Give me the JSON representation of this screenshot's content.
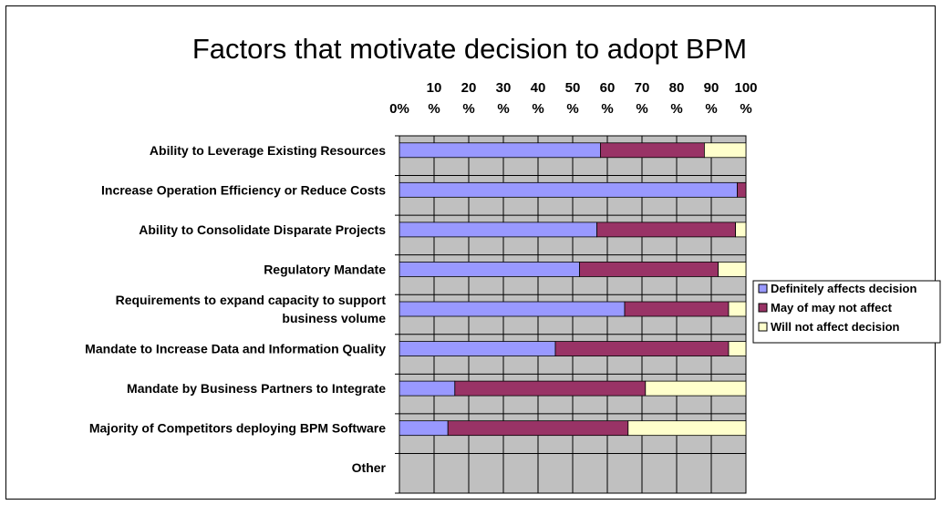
{
  "chart_data": {
    "type": "bar",
    "orientation": "horizontal",
    "stacked": true,
    "percent": true,
    "title": "Factors that motivate decision to adopt BPM",
    "x_ticks": [
      [
        "0%"
      ],
      [
        "10",
        "%"
      ],
      [
        "20",
        "%"
      ],
      [
        "30",
        "%"
      ],
      [
        "40",
        "%"
      ],
      [
        "50",
        "%"
      ],
      [
        "60",
        "%"
      ],
      [
        "70",
        "%"
      ],
      [
        "80",
        "%"
      ],
      [
        "90",
        "%"
      ],
      [
        "100",
        "%"
      ]
    ],
    "xlim": [
      0,
      100
    ],
    "grid": true,
    "legend_position": "right",
    "categories": [
      [
        "Ability to Leverage Existing Resources"
      ],
      [
        "Increase Operation Efficiency or Reduce Costs"
      ],
      [
        "Ability to Consolidate Disparate Projects"
      ],
      [
        "Regulatory Mandate"
      ],
      [
        "Requirements to expand capacity to support",
        "business volume"
      ],
      [
        "Mandate to Increase Data and Information Quality"
      ],
      [
        "Mandate by Business Partners to Integrate"
      ],
      [
        "Majority of Competitors deploying BPM Software"
      ],
      [
        "Other"
      ]
    ],
    "series": [
      {
        "name": "Definitely affects decision",
        "color": "#9999ff",
        "values": [
          58,
          97.5,
          57,
          52,
          65,
          45,
          16,
          14,
          0
        ]
      },
      {
        "name": "May of may not affect",
        "color": "#993366",
        "values": [
          30,
          2.5,
          40,
          40,
          30,
          50,
          55,
          52,
          0
        ]
      },
      {
        "name": "Will not affect decision",
        "color": "#ffffcc",
        "values": [
          12,
          0,
          3,
          8,
          5,
          5,
          29,
          34,
          0
        ]
      }
    ]
  },
  "colors": {
    "plot_background": "#c0c0c0",
    "gridline": "#000000"
  }
}
